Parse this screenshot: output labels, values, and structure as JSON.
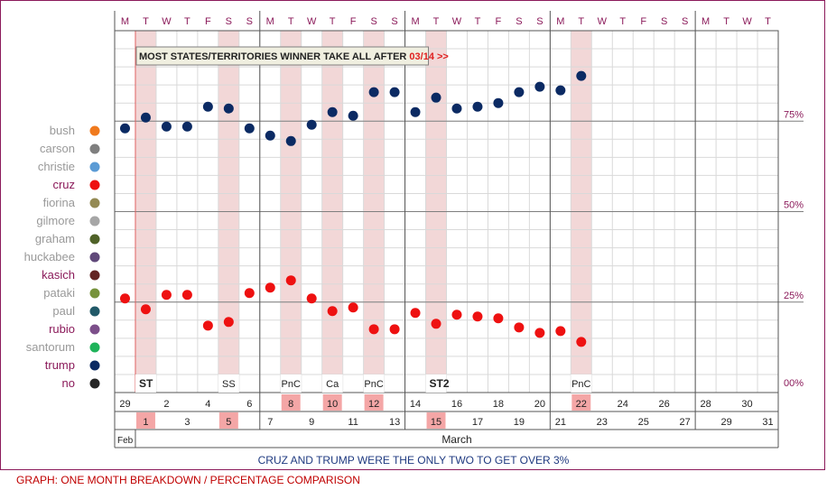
{
  "chart_data": {
    "type": "scatter",
    "weekday_letters": [
      "M",
      "T",
      "W",
      "T",
      "F",
      "S",
      "S",
      "M",
      "T",
      "W",
      "T",
      "F",
      "S",
      "S",
      "M",
      "T",
      "W",
      "T",
      "F",
      "S",
      "S",
      "M",
      "T",
      "W",
      "T",
      "F",
      "S",
      "S",
      "M",
      "T",
      "W",
      "T"
    ],
    "top_dates": [
      "29",
      "",
      "2",
      "",
      "4",
      "",
      "6",
      "",
      "8",
      "",
      "10",
      "",
      "12",
      "",
      "14",
      "",
      "16",
      "",
      "18",
      "",
      "20",
      "",
      "22",
      "",
      "24",
      "",
      "26",
      "",
      "28",
      "",
      "30",
      ""
    ],
    "bottom_dates": [
      "",
      "1",
      "",
      "3",
      "",
      "5",
      "",
      "7",
      "",
      "9",
      "",
      "11",
      "",
      "13",
      "",
      "15",
      "",
      "17",
      "",
      "19",
      "",
      "21",
      "",
      "23",
      "",
      "25",
      "",
      "27",
      "",
      "29",
      "",
      "31"
    ],
    "highlighted_days": [
      1,
      5,
      8,
      10,
      12,
      15,
      22
    ],
    "events": [
      {
        "day": 1,
        "label": "ST",
        "bold": true
      },
      {
        "day": 5,
        "label": "SS",
        "bold": false
      },
      {
        "day": 8,
        "label": "PnC",
        "bold": false
      },
      {
        "day": 10,
        "label": "Ca",
        "bold": false
      },
      {
        "day": 12,
        "label": "PnC",
        "bold": false
      },
      {
        "day": 15,
        "label": "ST2",
        "bold": true
      },
      {
        "day": 22,
        "label": "PnC",
        "bold": false
      }
    ],
    "banner_text": "MOST STATES/TERRITORIES WINNER TAKE ALL AFTER ",
    "banner_highlight": "03/14 >>",
    "y_ticks": [
      {
        "value": 75,
        "label": "75%"
      },
      {
        "value": 50,
        "label": "50%"
      },
      {
        "value": 25,
        "label": "25%"
      },
      {
        "value": 0,
        "label": "00%"
      }
    ],
    "ylim": [
      0,
      100
    ],
    "month_feb": "Feb",
    "month_march": "March",
    "series": [
      {
        "name": "trump",
        "color": "#0b2a63",
        "points": [
          [
            0,
            73
          ],
          [
            1,
            76
          ],
          [
            2,
            73.5
          ],
          [
            3,
            73.5
          ],
          [
            4,
            79
          ],
          [
            5,
            78.5
          ],
          [
            6,
            73
          ],
          [
            7,
            71
          ],
          [
            8,
            69.5
          ],
          [
            9,
            74
          ],
          [
            10,
            77.5
          ],
          [
            11,
            76.5
          ],
          [
            12,
            83
          ],
          [
            13,
            83
          ],
          [
            14,
            77.5
          ],
          [
            15,
            81.5
          ],
          [
            16,
            78.5
          ],
          [
            17,
            79
          ],
          [
            18,
            80
          ],
          [
            19,
            83
          ],
          [
            20,
            84.5
          ],
          [
            21,
            83.5
          ],
          [
            22,
            87.5
          ]
        ]
      },
      {
        "name": "cruz",
        "color": "#ee1111",
        "points": [
          [
            0,
            26
          ],
          [
            1,
            23
          ],
          [
            2,
            27
          ],
          [
            3,
            27
          ],
          [
            4,
            18.5
          ],
          [
            5,
            19.5
          ],
          [
            6,
            27.5
          ],
          [
            7,
            29
          ],
          [
            8,
            31
          ],
          [
            9,
            26
          ],
          [
            10,
            22.5
          ],
          [
            11,
            23.5
          ],
          [
            12,
            17.5
          ],
          [
            13,
            17.5
          ],
          [
            14,
            22
          ],
          [
            15,
            19
          ],
          [
            16,
            21.5
          ],
          [
            17,
            21
          ],
          [
            18,
            20.5
          ],
          [
            19,
            18
          ],
          [
            20,
            16.5
          ],
          [
            21,
            17
          ],
          [
            22,
            14
          ]
        ]
      }
    ],
    "legend": [
      {
        "name": "bush",
        "color": "#f07a1e",
        "highlight": false
      },
      {
        "name": "carson",
        "color": "#7f7f7f",
        "highlight": false
      },
      {
        "name": "christie",
        "color": "#5b9bd5",
        "highlight": false
      },
      {
        "name": "cruz",
        "color": "#ee1111",
        "highlight": true
      },
      {
        "name": "fiorina",
        "color": "#948a54",
        "highlight": false
      },
      {
        "name": "gilmore",
        "color": "#a6a6a6",
        "highlight": false
      },
      {
        "name": "graham",
        "color": "#4f6228",
        "highlight": false
      },
      {
        "name": "huckabee",
        "color": "#60497a",
        "highlight": false
      },
      {
        "name": "kasich",
        "color": "#632523",
        "highlight": true
      },
      {
        "name": "pataki",
        "color": "#77933c",
        "highlight": false
      },
      {
        "name": "paul",
        "color": "#215968",
        "highlight": false
      },
      {
        "name": "rubio",
        "color": "#7c4f8a",
        "highlight": true
      },
      {
        "name": "santorum",
        "color": "#1fb35a",
        "highlight": false
      },
      {
        "name": "trump",
        "color": "#0b2a63",
        "highlight": true
      },
      {
        "name": "no",
        "color": "#262626",
        "highlight": true
      }
    ]
  },
  "caption": "CRUZ AND TRUMP WERE THE ONLY TWO TO GET OVER 3%",
  "footer": "GRAPH: ONE MONTH BREAKDOWN / PERCENTAGE COMPARISON"
}
